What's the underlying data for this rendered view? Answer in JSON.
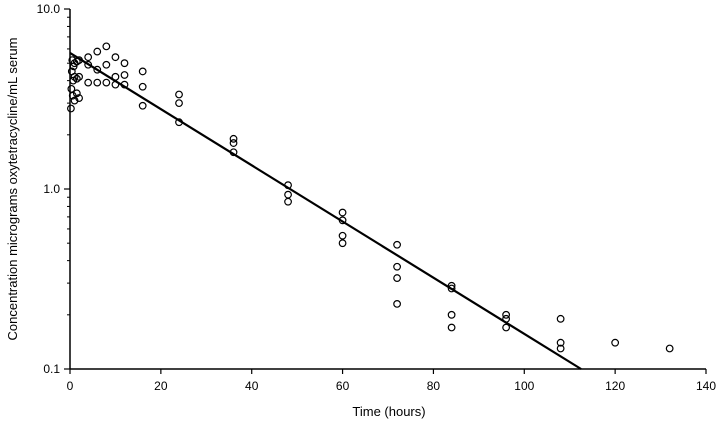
{
  "chart_data": {
    "type": "scatter",
    "title": "",
    "xlabel": "Time (hours)",
    "ylabel": "Concentration micrograms oxytetracycline/mL serum",
    "xlim": [
      0,
      140
    ],
    "ylim": [
      0.1,
      10.0
    ],
    "yscale": "log",
    "grid": false,
    "x_ticks": [
      0,
      20,
      40,
      60,
      80,
      100,
      120,
      140
    ],
    "x_tick_labels": [
      "0",
      "20",
      "40",
      "60",
      "80",
      "100",
      "120",
      "140"
    ],
    "y_ticks": [
      0.1,
      1.0,
      10.0
    ],
    "y_tick_labels": [
      "0.1",
      "1.0",
      "10.0"
    ],
    "points": [
      {
        "x": 0.2,
        "y": 2.8
      },
      {
        "x": 0.3,
        "y": 3.6
      },
      {
        "x": 0.4,
        "y": 4.5
      },
      {
        "x": 0.5,
        "y": 5.2
      },
      {
        "x": 0.6,
        "y": 3.3
      },
      {
        "x": 0.7,
        "y": 4.0
      },
      {
        "x": 0.8,
        "y": 4.8
      },
      {
        "x": 1.0,
        "y": 3.1
      },
      {
        "x": 1.0,
        "y": 4.2
      },
      {
        "x": 1.0,
        "y": 5.0
      },
      {
        "x": 1.5,
        "y": 3.4
      },
      {
        "x": 1.5,
        "y": 4.1
      },
      {
        "x": 1.5,
        "y": 5.1
      },
      {
        "x": 2.0,
        "y": 3.2
      },
      {
        "x": 2.0,
        "y": 4.2
      },
      {
        "x": 2.0,
        "y": 5.2
      },
      {
        "x": 4.0,
        "y": 3.9
      },
      {
        "x": 4.0,
        "y": 4.9
      },
      {
        "x": 4.0,
        "y": 5.4
      },
      {
        "x": 6.0,
        "y": 3.9
      },
      {
        "x": 6.0,
        "y": 4.6
      },
      {
        "x": 6.0,
        "y": 5.8
      },
      {
        "x": 8.0,
        "y": 3.9
      },
      {
        "x": 8.0,
        "y": 4.9
      },
      {
        "x": 8.0,
        "y": 6.2
      },
      {
        "x": 10.0,
        "y": 3.8
      },
      {
        "x": 10.0,
        "y": 4.2
      },
      {
        "x": 10.0,
        "y": 5.4
      },
      {
        "x": 12.0,
        "y": 3.8
      },
      {
        "x": 12.0,
        "y": 4.3
      },
      {
        "x": 12.0,
        "y": 5.0
      },
      {
        "x": 16.0,
        "y": 2.9
      },
      {
        "x": 16.0,
        "y": 3.7
      },
      {
        "x": 16.0,
        "y": 4.5
      },
      {
        "x": 24.0,
        "y": 2.35
      },
      {
        "x": 24.0,
        "y": 3.0
      },
      {
        "x": 24.0,
        "y": 3.35
      },
      {
        "x": 36.0,
        "y": 1.6
      },
      {
        "x": 36.0,
        "y": 1.8
      },
      {
        "x": 36.0,
        "y": 1.9
      },
      {
        "x": 48.0,
        "y": 0.85
      },
      {
        "x": 48.0,
        "y": 0.93
      },
      {
        "x": 48.0,
        "y": 1.05
      },
      {
        "x": 60.0,
        "y": 0.5
      },
      {
        "x": 60.0,
        "y": 0.55
      },
      {
        "x": 60.0,
        "y": 0.67
      },
      {
        "x": 60.0,
        "y": 0.74
      },
      {
        "x": 72.0,
        "y": 0.23
      },
      {
        "x": 72.0,
        "y": 0.32
      },
      {
        "x": 72.0,
        "y": 0.37
      },
      {
        "x": 72.0,
        "y": 0.49
      },
      {
        "x": 84.0,
        "y": 0.17
      },
      {
        "x": 84.0,
        "y": 0.2
      },
      {
        "x": 84.0,
        "y": 0.28
      },
      {
        "x": 84.0,
        "y": 0.29
      },
      {
        "x": 96.0,
        "y": 0.17
      },
      {
        "x": 96.0,
        "y": 0.19
      },
      {
        "x": 96.0,
        "y": 0.2
      },
      {
        "x": 108.0,
        "y": 0.13
      },
      {
        "x": 108.0,
        "y": 0.14
      },
      {
        "x": 108.0,
        "y": 0.19
      },
      {
        "x": 120.0,
        "y": 0.14
      },
      {
        "x": 132.0,
        "y": 0.13
      }
    ],
    "regression_line": {
      "x": [
        0,
        112.5
      ],
      "y": [
        5.7,
        0.1
      ]
    },
    "colors": {
      "marker_stroke": "#000000",
      "line": "#000000",
      "axis": "#000000"
    }
  }
}
